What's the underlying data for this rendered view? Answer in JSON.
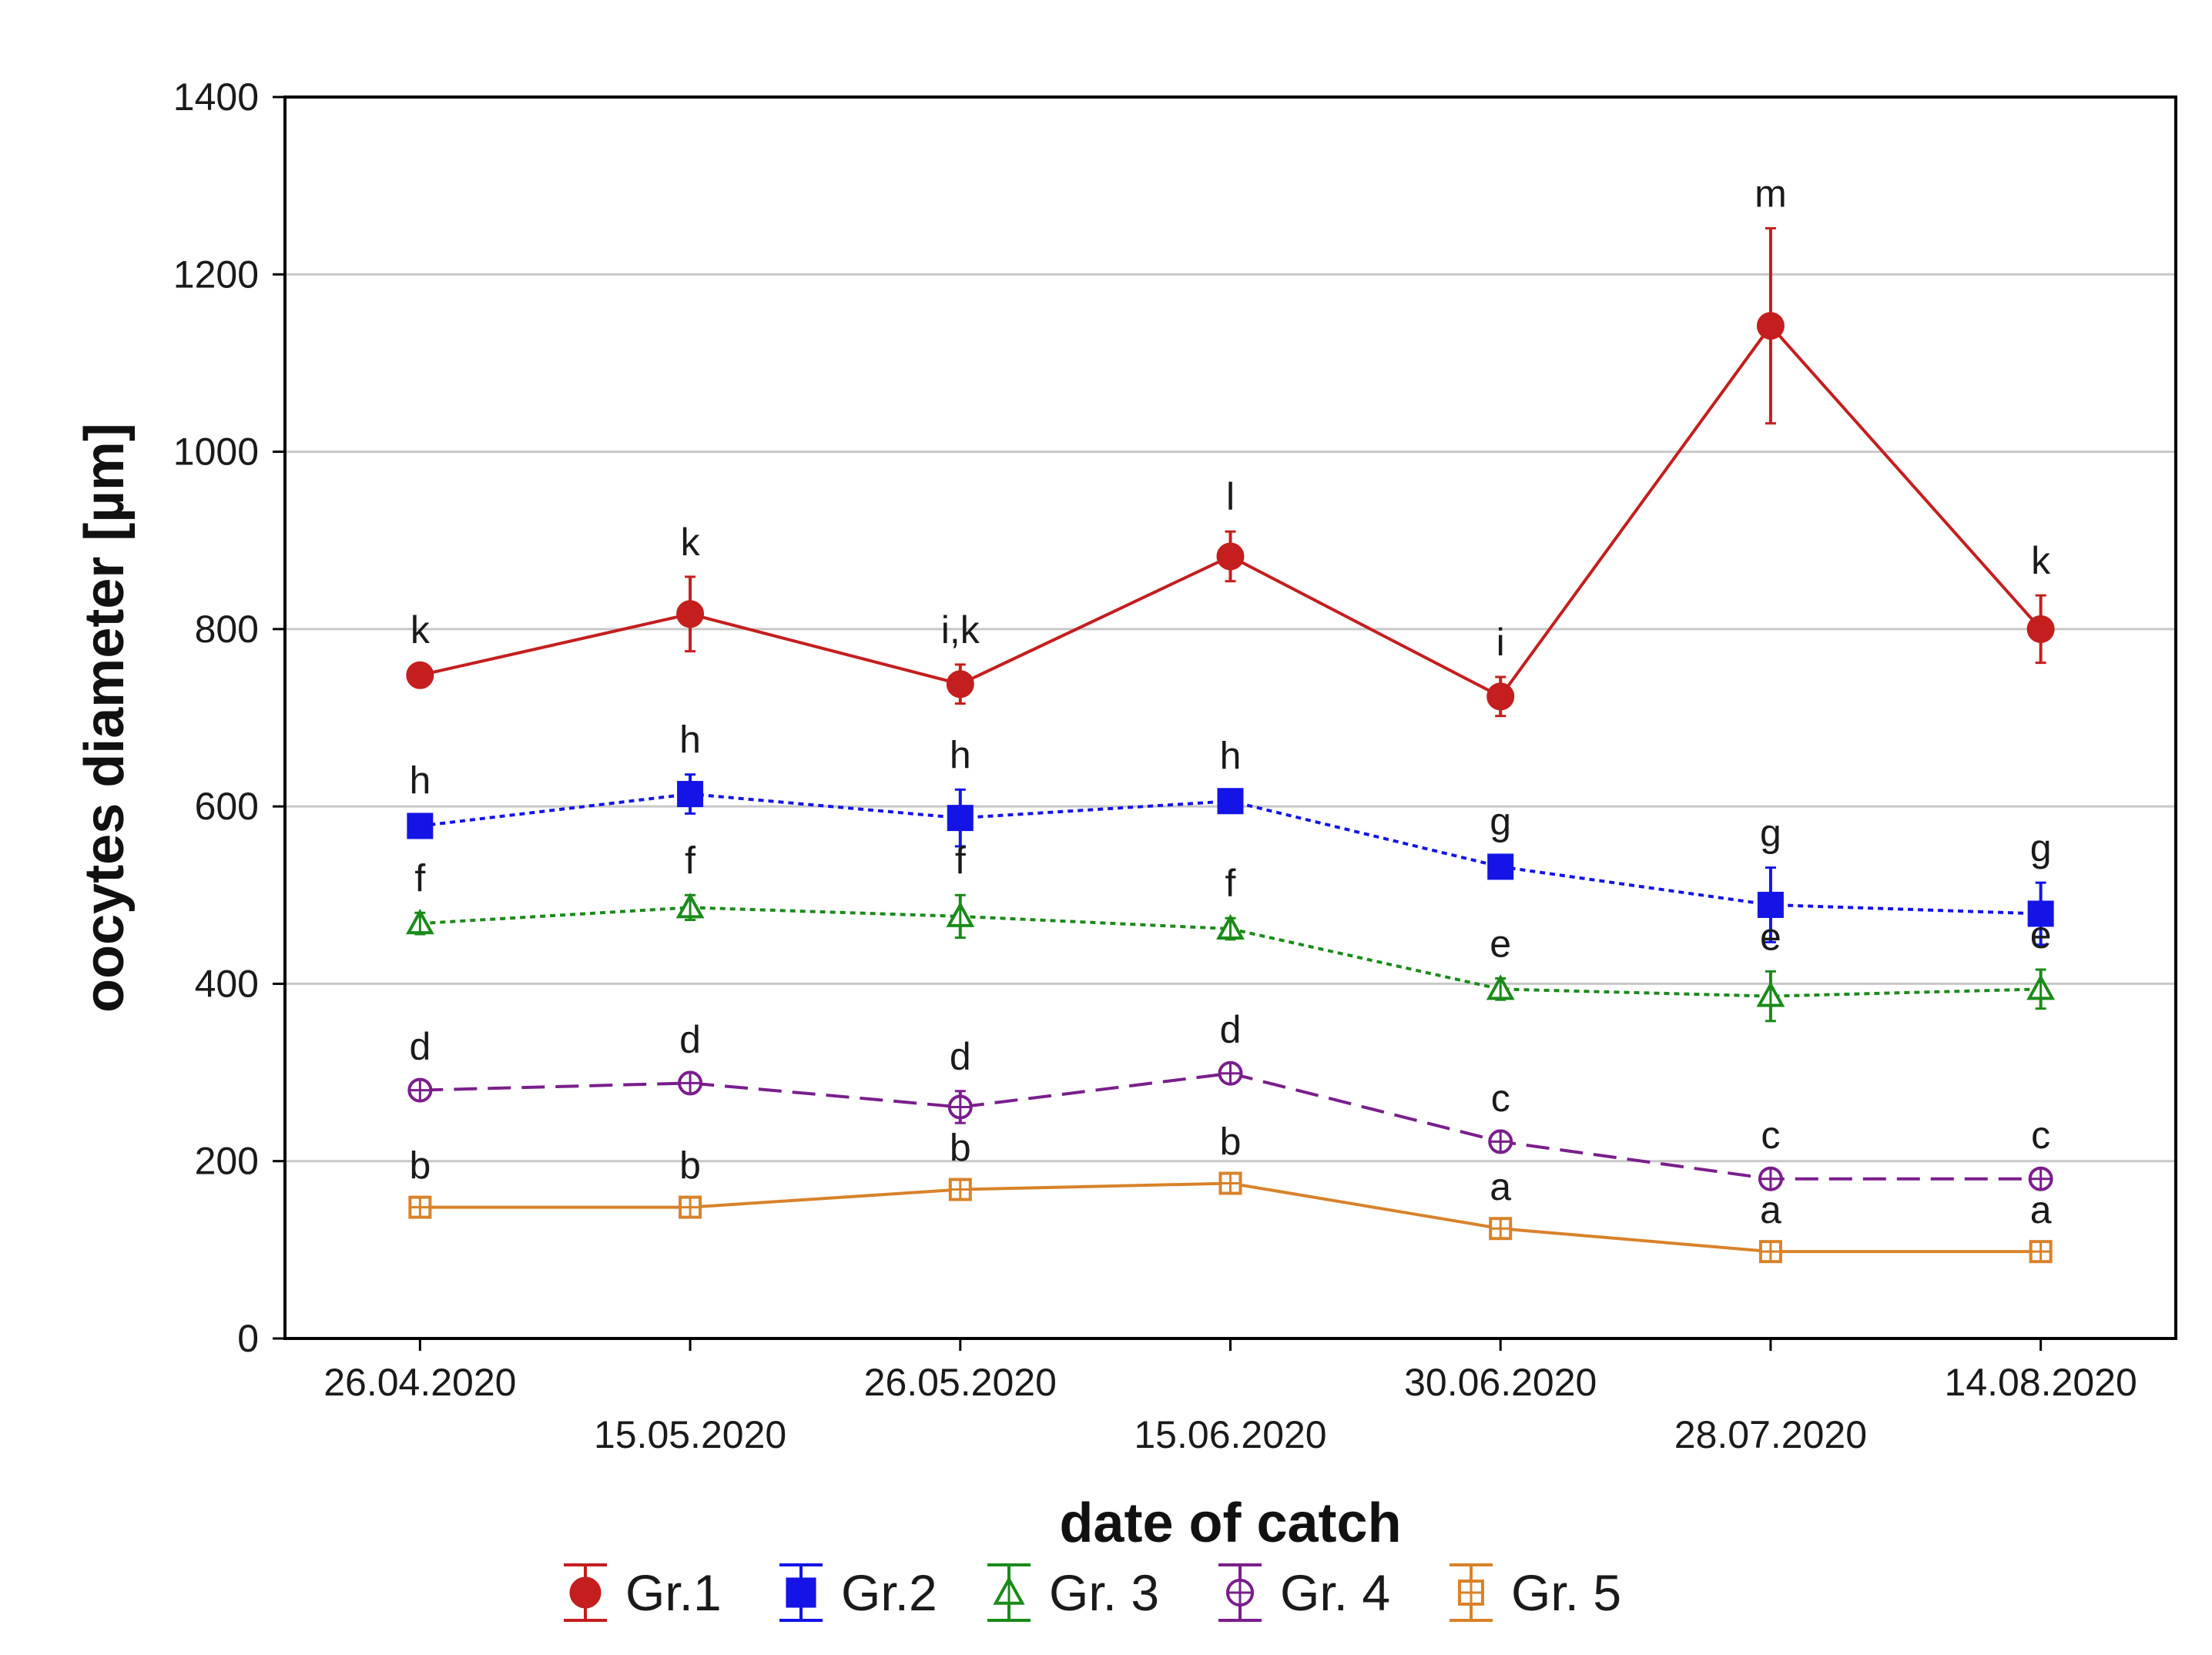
{
  "chart_data": {
    "type": "line",
    "title": "",
    "xlabel": "date of catch",
    "ylabel": "oocytes diameter [µm]",
    "ylim": [
      0,
      1400
    ],
    "yticks": [
      0,
      200,
      400,
      600,
      800,
      1000,
      1200,
      1400
    ],
    "grid": "horizontal",
    "legend_position": "bottom",
    "categories": [
      "26.04.2020",
      "15.05.2020",
      "26.05.2020",
      "15.06.2020",
      "30.06.2020",
      "28.07.2020",
      "14.08.2020"
    ],
    "series": [
      {
        "name": "Gr.1",
        "color": "#c41e1e",
        "marker": "filled-circle",
        "line": "solid",
        "values": [
          748,
          817,
          738,
          882,
          724,
          1142,
          800
        ],
        "errors": [
          12,
          42,
          22,
          28,
          22,
          110,
          38
        ],
        "letters": [
          "k",
          "k",
          "i,k",
          "l",
          "i",
          "m",
          "k"
        ]
      },
      {
        "name": "Gr.2",
        "color": "#1414e6",
        "marker": "filled-square",
        "line": "dotted",
        "values": [
          578,
          614,
          587,
          606,
          532,
          489,
          479
        ],
        "errors": [
          12,
          22,
          32,
          12,
          12,
          42,
          35
        ],
        "letters": [
          "h",
          "h",
          "h",
          "h",
          "g",
          "g",
          "g"
        ]
      },
      {
        "name": "Gr. 3",
        "color": "#1a8a1a",
        "marker": "open-triangle",
        "line": "dotted",
        "values": [
          468,
          486,
          476,
          462,
          394,
          386,
          394
        ],
        "errors": [
          12,
          14,
          24,
          12,
          12,
          28,
          22
        ],
        "letters": [
          "f",
          "f",
          "f",
          "f",
          "e",
          "e",
          "e"
        ]
      },
      {
        "name": "Gr. 4",
        "color": "#7a1e8c",
        "marker": "open-circle-cross",
        "line": "dashed",
        "values": [
          280,
          288,
          261,
          299,
          222,
          180,
          180
        ],
        "errors": [
          10,
          10,
          18,
          10,
          10,
          10,
          10
        ],
        "letters": [
          "d",
          "d",
          "d",
          "d",
          "c",
          "c",
          "c"
        ]
      },
      {
        "name": "Gr. 5",
        "color": "#d8822a",
        "marker": "open-square-cross",
        "line": "solid",
        "values": [
          148,
          148,
          168,
          175,
          124,
          98,
          98
        ],
        "errors": [
          8,
          8,
          8,
          8,
          8,
          8,
          8
        ],
        "letters": [
          "b",
          "b",
          "b",
          "b",
          "a",
          "a",
          "a"
        ]
      }
    ]
  }
}
